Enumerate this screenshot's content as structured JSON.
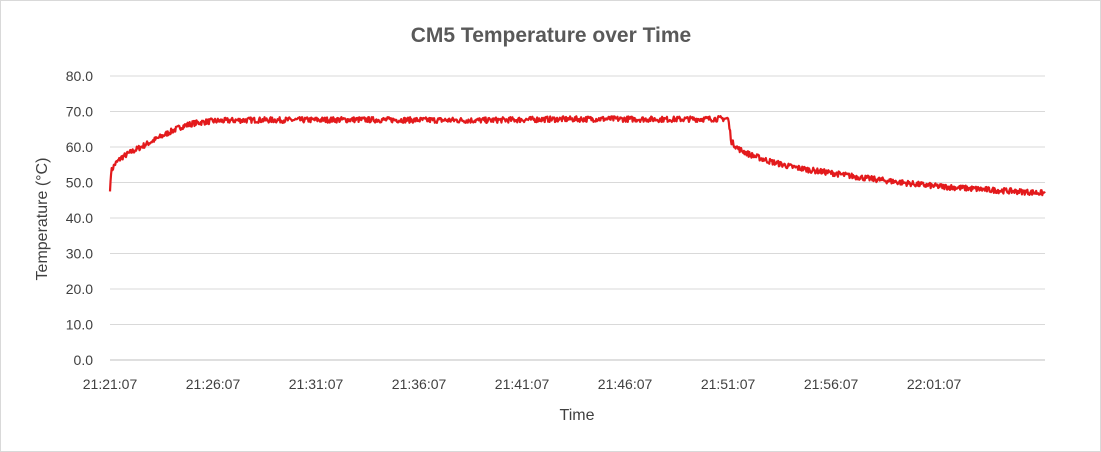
{
  "chart_data": {
    "type": "line",
    "title": "CM5 Temperature over Time",
    "xlabel": "Time",
    "ylabel": "Temperature (°C)",
    "ylim": [
      0,
      80
    ],
    "yticks": [
      "0.0",
      "10.0",
      "20.0",
      "30.0",
      "40.0",
      "50.0",
      "60.0",
      "70.0",
      "80.0"
    ],
    "xticks": [
      "21:21:07",
      "21:26:07",
      "21:31:07",
      "21:36:07",
      "21:41:07",
      "21:46:07",
      "21:51:07",
      "21:56:07",
      "22:01:07"
    ],
    "x_range": [
      "21:21:07",
      "22:06:30"
    ],
    "grid": "horizontal",
    "legend": "none",
    "series": [
      {
        "color": "#e31a1c",
        "points": [
          [
            "21:21:07",
            47.5
          ],
          [
            "21:21:10",
            53.0
          ],
          [
            "21:21:20",
            55.0
          ],
          [
            "21:21:40",
            57.0
          ],
          [
            "21:22:07",
            58.5
          ],
          [
            "21:22:37",
            60.0
          ],
          [
            "21:23:07",
            61.5
          ],
          [
            "21:23:37",
            63.0
          ],
          [
            "21:24:07",
            64.5
          ],
          [
            "21:24:37",
            65.8
          ],
          [
            "21:25:07",
            66.6
          ],
          [
            "21:25:37",
            67.0
          ],
          [
            "21:26:07",
            67.3
          ],
          [
            "21:27:07",
            67.5
          ],
          [
            "21:28:07",
            67.6
          ],
          [
            "21:30:07",
            67.6
          ],
          [
            "21:33:07",
            67.7
          ],
          [
            "21:36:07",
            67.6
          ],
          [
            "21:39:07",
            67.5
          ],
          [
            "21:42:07",
            67.8
          ],
          [
            "21:45:07",
            67.9
          ],
          [
            "21:48:07",
            67.8
          ],
          [
            "21:50:07",
            67.9
          ],
          [
            "21:51:07",
            68.0
          ],
          [
            "21:51:17",
            61.5
          ],
          [
            "21:51:37",
            59.5
          ],
          [
            "21:52:07",
            58.0
          ],
          [
            "21:53:07",
            56.0
          ],
          [
            "21:54:07",
            54.5
          ],
          [
            "21:55:07",
            53.5
          ],
          [
            "21:56:07",
            52.7
          ],
          [
            "21:57:07",
            51.8
          ],
          [
            "21:58:07",
            51.0
          ],
          [
            "21:59:07",
            50.3
          ],
          [
            "22:00:07",
            49.6
          ],
          [
            "22:01:07",
            49.0
          ],
          [
            "22:02:07",
            48.6
          ],
          [
            "22:03:07",
            48.2
          ],
          [
            "22:04:07",
            47.8
          ],
          [
            "22:05:07",
            47.5
          ],
          [
            "22:06:30",
            47.0
          ]
        ]
      }
    ]
  }
}
